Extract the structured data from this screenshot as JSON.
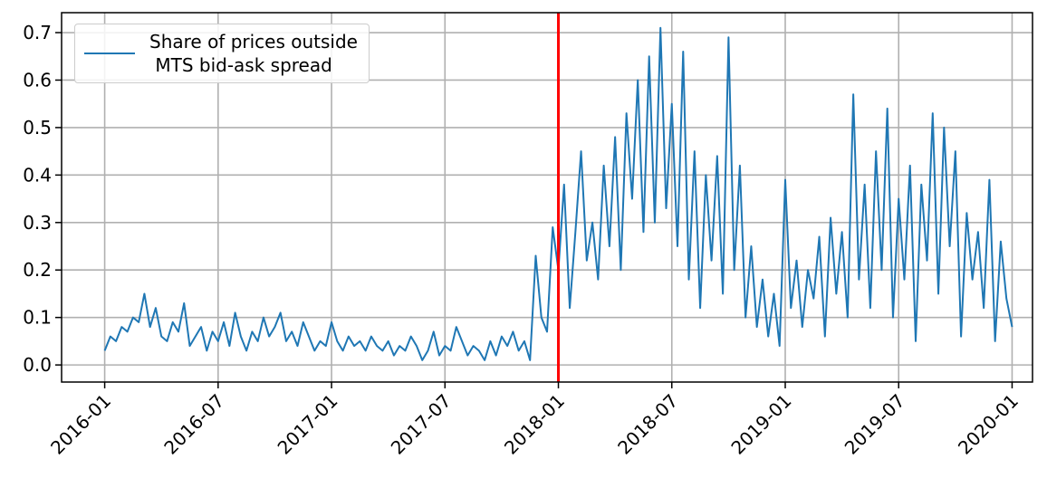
{
  "chart_data": {
    "type": "line",
    "x": [
      2016.0,
      2016.025,
      2016.05,
      2016.075,
      2016.1,
      2016.125,
      2016.15,
      2016.175,
      2016.2,
      2016.225,
      2016.25,
      2016.275,
      2016.3,
      2016.325,
      2016.35,
      2016.375,
      2016.4,
      2016.425,
      2016.45,
      2016.475,
      2016.5,
      2016.525,
      2016.55,
      2016.575,
      2016.6,
      2016.625,
      2016.65,
      2016.675,
      2016.7,
      2016.725,
      2016.75,
      2016.775,
      2016.8,
      2016.825,
      2016.85,
      2016.875,
      2016.9,
      2016.925,
      2016.95,
      2016.975,
      2017.0,
      2017.025,
      2017.05,
      2017.075,
      2017.1,
      2017.125,
      2017.15,
      2017.175,
      2017.2,
      2017.225,
      2017.25,
      2017.275,
      2017.3,
      2017.325,
      2017.35,
      2017.375,
      2017.4,
      2017.425,
      2017.45,
      2017.475,
      2017.5,
      2017.525,
      2017.55,
      2017.575,
      2017.6,
      2017.625,
      2017.65,
      2017.675,
      2017.7,
      2017.725,
      2017.75,
      2017.775,
      2017.8,
      2017.825,
      2017.85,
      2017.875,
      2017.9,
      2017.925,
      2017.95,
      2017.975,
      2018.0,
      2018.025,
      2018.05,
      2018.075,
      2018.1,
      2018.125,
      2018.15,
      2018.175,
      2018.2,
      2018.225,
      2018.25,
      2018.275,
      2018.3,
      2018.325,
      2018.35,
      2018.375,
      2018.4,
      2018.425,
      2018.45,
      2018.475,
      2018.5,
      2018.525,
      2018.55,
      2018.575,
      2018.6,
      2018.625,
      2018.65,
      2018.675,
      2018.7,
      2018.725,
      2018.75,
      2018.775,
      2018.8,
      2018.825,
      2018.85,
      2018.875,
      2018.9,
      2018.925,
      2018.95,
      2018.975,
      2019.0,
      2019.025,
      2019.05,
      2019.075,
      2019.1,
      2019.125,
      2019.15,
      2019.175,
      2019.2,
      2019.225,
      2019.25,
      2019.275,
      2019.3,
      2019.325,
      2019.35,
      2019.375,
      2019.4,
      2019.425,
      2019.45,
      2019.475,
      2019.5,
      2019.525,
      2019.55,
      2019.575,
      2019.6,
      2019.625,
      2019.65,
      2019.675,
      2019.7,
      2019.725,
      2019.75,
      2019.775,
      2019.8,
      2019.825,
      2019.85,
      2019.875,
      2019.9,
      2019.925,
      2019.95,
      2019.975,
      2020.0
    ],
    "series": [
      {
        "name": "Share of prices outside\n MTS bid-ask spread",
        "color": "#1f77b4",
        "values": [
          0.03,
          0.06,
          0.05,
          0.08,
          0.07,
          0.1,
          0.09,
          0.15,
          0.08,
          0.12,
          0.06,
          0.05,
          0.09,
          0.07,
          0.13,
          0.04,
          0.06,
          0.08,
          0.03,
          0.07,
          0.05,
          0.09,
          0.04,
          0.11,
          0.06,
          0.03,
          0.07,
          0.05,
          0.1,
          0.06,
          0.08,
          0.11,
          0.05,
          0.07,
          0.04,
          0.09,
          0.06,
          0.03,
          0.05,
          0.04,
          0.09,
          0.05,
          0.03,
          0.06,
          0.04,
          0.05,
          0.03,
          0.06,
          0.04,
          0.03,
          0.05,
          0.02,
          0.04,
          0.03,
          0.06,
          0.04,
          0.01,
          0.03,
          0.07,
          0.02,
          0.04,
          0.03,
          0.08,
          0.05,
          0.02,
          0.04,
          0.03,
          0.01,
          0.05,
          0.02,
          0.06,
          0.04,
          0.07,
          0.03,
          0.05,
          0.01,
          0.23,
          0.1,
          0.07,
          0.29,
          0.2,
          0.38,
          0.12,
          0.28,
          0.45,
          0.22,
          0.3,
          0.18,
          0.42,
          0.25,
          0.48,
          0.2,
          0.53,
          0.35,
          0.6,
          0.28,
          0.65,
          0.3,
          0.71,
          0.33,
          0.55,
          0.25,
          0.66,
          0.18,
          0.45,
          0.12,
          0.4,
          0.22,
          0.44,
          0.15,
          0.69,
          0.2,
          0.42,
          0.1,
          0.25,
          0.08,
          0.18,
          0.06,
          0.15,
          0.04,
          0.39,
          0.12,
          0.22,
          0.08,
          0.2,
          0.14,
          0.27,
          0.06,
          0.31,
          0.15,
          0.28,
          0.1,
          0.57,
          0.18,
          0.38,
          0.12,
          0.45,
          0.2,
          0.54,
          0.1,
          0.35,
          0.18,
          0.42,
          0.05,
          0.38,
          0.22,
          0.53,
          0.15,
          0.5,
          0.25,
          0.45,
          0.06,
          0.32,
          0.18,
          0.28,
          0.12,
          0.39,
          0.05,
          0.26,
          0.14,
          0.08
        ]
      }
    ],
    "vline": {
      "x": 2018.0,
      "color": "red"
    },
    "xlim": [
      2015.81,
      2020.09
    ],
    "xticks": [
      {
        "value": 2016.0,
        "label": "2016-01"
      },
      {
        "value": 2016.5,
        "label": "2016-07"
      },
      {
        "value": 2017.0,
        "label": "2017-01"
      },
      {
        "value": 2017.5,
        "label": "2017-07"
      },
      {
        "value": 2018.0,
        "label": "2018-01"
      },
      {
        "value": 2018.5,
        "label": "2018-07"
      },
      {
        "value": 2019.0,
        "label": "2019-01"
      },
      {
        "value": 2019.5,
        "label": "2019-07"
      },
      {
        "value": 2020.0,
        "label": "2020-01"
      }
    ],
    "ylim": [
      -0.036,
      0.742
    ],
    "yticks": [
      {
        "value": 0,
        "label": "0.0"
      },
      0.1,
      0.2,
      0.3,
      0.4,
      0.5,
      0.6,
      0.7
    ],
    "grid": true,
    "legend": "upper left"
  }
}
